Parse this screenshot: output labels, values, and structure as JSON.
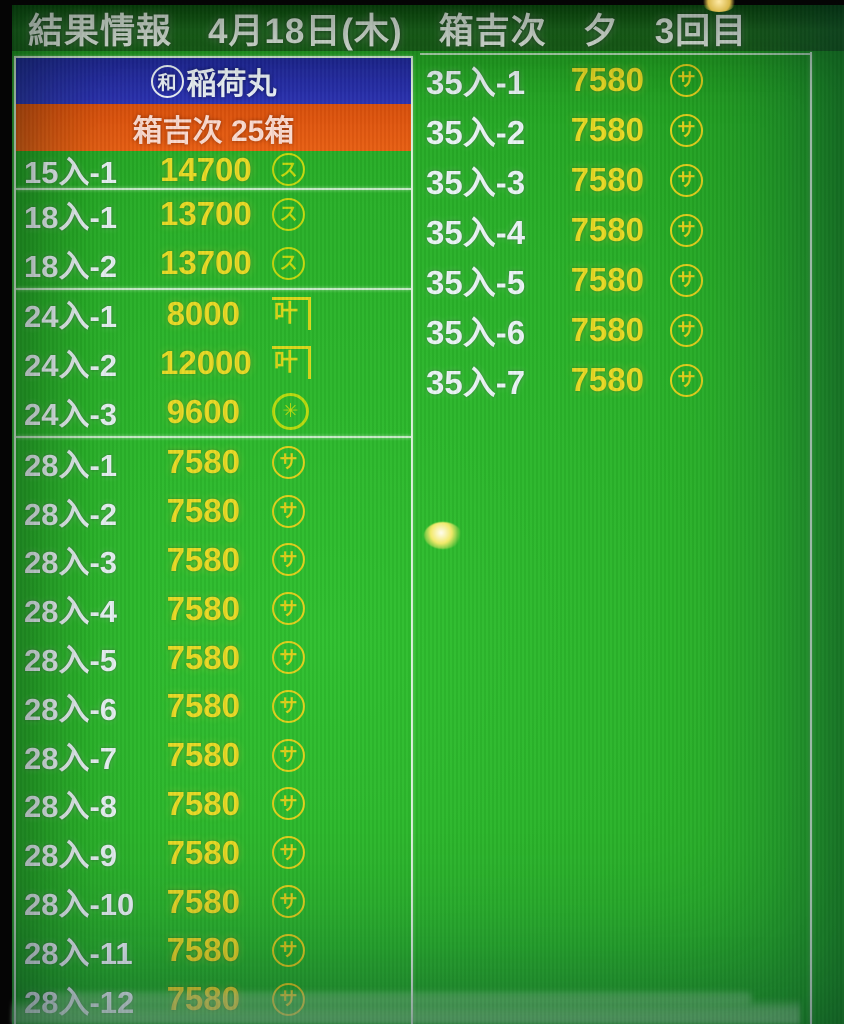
{
  "header": {
    "title": "結果情報　4月18日(木)　箱吉次　夕　3回目"
  },
  "left_panel": {
    "vessel_mark": "和",
    "vessel_name": "稲荷丸",
    "lot_title": "箱吉次 25箱",
    "groups": [
      {
        "rows": [
          {
            "label": "15入-1",
            "price": "14700",
            "mark": {
              "glyph": "ス",
              "type": "circled-su"
            }
          }
        ]
      },
      {
        "rows": [
          {
            "label": "18入-1",
            "price": "13700",
            "mark": {
              "glyph": "ス",
              "type": "circled-su"
            }
          },
          {
            "label": "18入-2",
            "price": "13700",
            "mark": {
              "glyph": "ス",
              "type": "circled-su"
            }
          }
        ]
      },
      {
        "rows": [
          {
            "label": "24入-1",
            "price": "8000",
            "mark": {
              "glyph": "叶",
              "type": "kane-kanou"
            }
          },
          {
            "label": "24入-2",
            "price": "12000",
            "mark": {
              "glyph": "叶",
              "type": "kane-kanou"
            }
          },
          {
            "label": "24入-3",
            "price": "9600",
            "mark": {
              "glyph": "✳",
              "type": "flower-crest"
            }
          }
        ]
      },
      {
        "rows": [
          {
            "label": "28入-1",
            "price": "7580",
            "mark": {
              "glyph": "サ",
              "type": "circled-sa"
            }
          },
          {
            "label": "28入-2",
            "price": "7580",
            "mark": {
              "glyph": "サ",
              "type": "circled-sa"
            }
          },
          {
            "label": "28入-3",
            "price": "7580",
            "mark": {
              "glyph": "サ",
              "type": "circled-sa"
            }
          },
          {
            "label": "28入-4",
            "price": "7580",
            "mark": {
              "glyph": "サ",
              "type": "circled-sa"
            }
          },
          {
            "label": "28入-5",
            "price": "7580",
            "mark": {
              "glyph": "サ",
              "type": "circled-sa"
            }
          },
          {
            "label": "28入-6",
            "price": "7580",
            "mark": {
              "glyph": "サ",
              "type": "circled-sa"
            }
          },
          {
            "label": "28入-7",
            "price": "7580",
            "mark": {
              "glyph": "サ",
              "type": "circled-sa"
            }
          },
          {
            "label": "28入-8",
            "price": "7580",
            "mark": {
              "glyph": "サ",
              "type": "circled-sa"
            }
          },
          {
            "label": "28入-9",
            "price": "7580",
            "mark": {
              "glyph": "サ",
              "type": "circled-sa"
            }
          },
          {
            "label": "28入-10",
            "price": "7580",
            "mark": {
              "glyph": "サ",
              "type": "circled-sa"
            }
          },
          {
            "label": "28入-11",
            "price": "7580",
            "mark": {
              "glyph": "サ",
              "type": "circled-sa"
            }
          },
          {
            "label": "28入-12",
            "price": "7580",
            "mark": {
              "glyph": "サ",
              "type": "circled-sa"
            }
          }
        ]
      }
    ]
  },
  "right_panel": {
    "rows": [
      {
        "label": "35入-1",
        "price": "7580",
        "mark": {
          "glyph": "サ",
          "type": "circled-sa"
        }
      },
      {
        "label": "35入-2",
        "price": "7580",
        "mark": {
          "glyph": "サ",
          "type": "circled-sa"
        }
      },
      {
        "label": "35入-3",
        "price": "7580",
        "mark": {
          "glyph": "サ",
          "type": "circled-sa"
        }
      },
      {
        "label": "35入-4",
        "price": "7580",
        "mark": {
          "glyph": "サ",
          "type": "circled-sa"
        }
      },
      {
        "label": "35入-5",
        "price": "7580",
        "mark": {
          "glyph": "サ",
          "type": "circled-sa"
        }
      },
      {
        "label": "35入-6",
        "price": "7580",
        "mark": {
          "glyph": "サ",
          "type": "circled-sa"
        }
      },
      {
        "label": "35入-7",
        "price": "7580",
        "mark": {
          "glyph": "サ",
          "type": "circled-sa"
        }
      }
    ]
  },
  "colors": {
    "screen_green": "#28a828",
    "header_green": "#1f6d1f",
    "panel_blue": "#2a2db0",
    "panel_orange": "#e5550f",
    "price_yellow": "#ecd925",
    "label_white": "#eef3fa",
    "mark_yellow_green": "#c8d70f"
  }
}
